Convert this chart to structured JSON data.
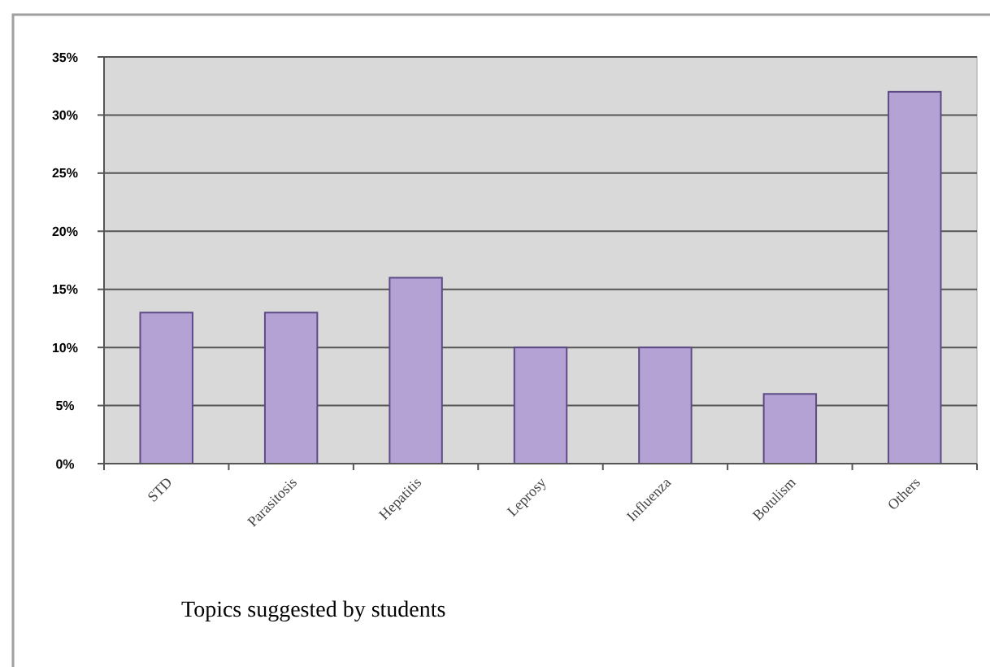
{
  "chart_data": {
    "type": "bar",
    "xlabel": "Topics suggested by students",
    "categories": [
      "STD",
      "Parasitosis",
      "Hepatitis",
      "Leprosy",
      "Influenza",
      "Botulism",
      "Others"
    ],
    "values": [
      13,
      13,
      16,
      10,
      10,
      6,
      32
    ],
    "color": "#b3a2d3",
    "ylim": [
      0,
      35
    ],
    "yticks": [
      {
        "value": 0,
        "label": "0%"
      },
      {
        "value": 5,
        "label": "5%"
      },
      {
        "value": 10,
        "label": "10%"
      },
      {
        "value": 15,
        "label": "15%"
      },
      {
        "value": 20,
        "label": "20%"
      },
      {
        "value": 25,
        "label": "25%"
      },
      {
        "value": 30,
        "label": "30%"
      },
      {
        "value": 35,
        "label": "35%"
      }
    ],
    "grid": "y"
  }
}
